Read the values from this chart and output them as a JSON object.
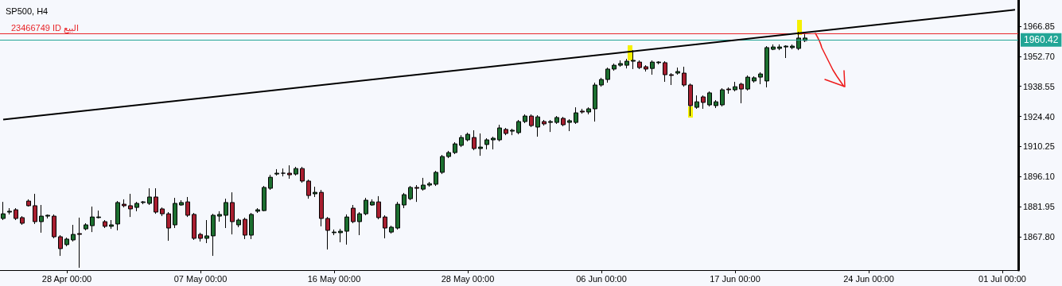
{
  "chart_data": {
    "type": "candlestick",
    "title": "SP500, H4",
    "categories": [
      null,
      null,
      null,
      null,
      null,
      null,
      null,
      null,
      null,
      null,
      "28 Apr 00:00",
      null,
      null,
      null,
      null,
      null,
      null,
      null,
      null,
      null,
      null,
      null,
      null,
      null,
      null,
      null,
      null,
      null,
      null,
      null,
      null,
      "07 May 00:00",
      null,
      null,
      null,
      null,
      null,
      null,
      null,
      null,
      null,
      null,
      null,
      null,
      null,
      null,
      null,
      null,
      null,
      null,
      null,
      null,
      "16 May 00:00",
      null,
      null,
      null,
      null,
      null,
      null,
      null,
      null,
      null,
      null,
      null,
      null,
      null,
      null,
      null,
      null,
      null,
      null,
      null,
      null,
      "28 May 00:00",
      null,
      null,
      null,
      null,
      null,
      null,
      null,
      null,
      null,
      null,
      null,
      null,
      null,
      null,
      null,
      null,
      null,
      null,
      null,
      null,
      "06 Jun 00:00",
      null,
      null,
      null,
      null,
      null,
      null,
      null,
      null,
      null,
      null,
      null,
      null,
      null,
      null,
      null,
      null,
      null,
      null,
      null,
      null,
      "17 Jun 00:00",
      null,
      null,
      null,
      null,
      null,
      null,
      null,
      null,
      null,
      null,
      null,
      null,
      null,
      null,
      null,
      null,
      null,
      null,
      null,
      null,
      "24 Jun 00:00",
      null,
      null,
      null,
      null,
      null,
      null,
      null,
      null,
      null,
      null,
      null,
      null,
      null,
      null,
      null,
      null,
      null,
      null,
      null,
      null,
      "01 Jul 00:00",
      null,
      null
    ],
    "ohlc": [
      [
        1876.4,
        1884.2,
        1875.65,
        1878.6
      ],
      [
        1879.4,
        1881.25,
        1878.3,
        1879.8
      ],
      [
        1880.5,
        1881.25,
        1875.65,
        1876.4
      ],
      [
        1876.8,
        1877.5,
        1873.4,
        1874.15
      ],
      [
        1884.6,
        1885.4,
        1882.0,
        1882.4
      ],
      [
        1882.4,
        1888.0,
        1873.8,
        1874.9
      ],
      [
        1874.9,
        1882.75,
        1869.7,
        1877.5
      ],
      [
        1877.5,
        1878.3,
        1876.4,
        1877.9
      ],
      [
        1877.5,
        1878.3,
        1867.05,
        1867.8
      ],
      [
        1867.8,
        1868.55,
        1858.8,
        1862.2
      ],
      [
        1864.1,
        1867.4,
        1863.3,
        1866.7
      ],
      [
        1866.3,
        1873.4,
        1865.55,
        1868.9
      ],
      [
        1869.3,
        1876.8,
        1853.2,
        1868.9
      ],
      [
        1871.5,
        1874.15,
        1870.8,
        1873.4
      ],
      [
        1873.0,
        1882.0,
        1870.0,
        1877.1
      ],
      [
        1876.8,
        1880.1,
        1876.4,
        1877.1
      ],
      [
        1874.9,
        1875.65,
        1871.9,
        1872.7
      ],
      [
        1872.7,
        1875.65,
        1871.5,
        1873.4
      ],
      [
        1873.8,
        1884.6,
        1870.8,
        1883.9
      ],
      [
        1883.1,
        1885.4,
        1881.6,
        1882.4
      ],
      [
        1882.4,
        1888.0,
        1877.1,
        1880.9
      ],
      [
        1881.6,
        1884.2,
        1879.8,
        1883.5
      ],
      [
        1883.9,
        1884.6,
        1883.1,
        1884.2
      ],
      [
        1883.5,
        1890.6,
        1882.75,
        1886.5
      ],
      [
        1886.5,
        1890.6,
        1878.6,
        1879.4
      ],
      [
        1880.9,
        1881.6,
        1877.5,
        1878.6
      ],
      [
        1878.6,
        1879.4,
        1865.9,
        1871.9
      ],
      [
        1873.4,
        1886.1,
        1871.9,
        1883.5
      ],
      [
        1882.75,
        1885.0,
        1882.4,
        1883.9
      ],
      [
        1884.2,
        1886.5,
        1877.1,
        1877.9
      ],
      [
        1878.3,
        1879.0,
        1866.3,
        1867.05
      ],
      [
        1868.9,
        1869.7,
        1865.55,
        1867.05
      ],
      [
        1867.05,
        1875.65,
        1864.8,
        1868.2
      ],
      [
        1868.2,
        1878.6,
        1858.8,
        1877.9
      ],
      [
        1877.5,
        1879.8,
        1874.9,
        1878.3
      ],
      [
        1877.9,
        1885.7,
        1871.9,
        1883.9
      ],
      [
        1883.9,
        1888.7,
        1868.9,
        1874.9
      ],
      [
        1873.4,
        1876.4,
        1872.3,
        1875.65
      ],
      [
        1876.0,
        1876.8,
        1866.7,
        1868.55
      ],
      [
        1868.55,
        1879.0,
        1866.7,
        1878.3
      ],
      [
        1879.8,
        1881.25,
        1879.0,
        1880.5
      ],
      [
        1880.1,
        1891.7,
        1879.8,
        1891.0
      ],
      [
        1890.6,
        1896.95,
        1889.85,
        1895.8
      ],
      [
        1897.3,
        1899.6,
        1896.6,
        1897.7
      ],
      [
        1897.7,
        1899.9,
        1896.2,
        1897.7
      ],
      [
        1897.7,
        1901.4,
        1895.1,
        1896.95
      ],
      [
        1897.3,
        1900.7,
        1896.6,
        1899.9
      ],
      [
        1899.9,
        1900.7,
        1893.2,
        1894.0
      ],
      [
        1894.0,
        1894.7,
        1885.7,
        1887.2
      ],
      [
        1888.0,
        1891.35,
        1886.5,
        1888.7
      ],
      [
        1888.7,
        1889.85,
        1872.7,
        1876.4
      ],
      [
        1876.4,
        1877.1,
        1861.8,
        1870.8
      ],
      [
        1869.7,
        1871.2,
        1868.55,
        1870.0
      ],
      [
        1869.7,
        1871.5,
        1865.2,
        1870.4
      ],
      [
        1870.4,
        1878.3,
        1864.1,
        1877.1
      ],
      [
        1881.25,
        1882.75,
        1874.15,
        1874.9
      ],
      [
        1874.9,
        1879.4,
        1868.55,
        1878.6
      ],
      [
        1878.6,
        1886.1,
        1877.9,
        1885.0
      ],
      [
        1882.75,
        1885.4,
        1882.4,
        1884.2
      ],
      [
        1884.2,
        1886.9,
        1876.0,
        1876.8
      ],
      [
        1877.1,
        1877.9,
        1867.05,
        1871.9
      ],
      [
        1870.0,
        1873.0,
        1869.3,
        1872.3
      ],
      [
        1871.9,
        1884.2,
        1871.2,
        1883.1
      ],
      [
        1882.75,
        1888.4,
        1881.25,
        1887.6
      ],
      [
        1885.7,
        1891.7,
        1885.0,
        1891.0
      ],
      [
        1891.0,
        1892.1,
        1884.2,
        1890.6
      ],
      [
        1890.2,
        1895.5,
        1889.5,
        1892.1
      ],
      [
        1892.1,
        1893.6,
        1891.35,
        1892.8
      ],
      [
        1892.5,
        1898.8,
        1891.7,
        1898.1
      ],
      [
        1898.1,
        1906.3,
        1897.3,
        1905.55
      ],
      [
        1905.55,
        1908.2,
        1904.8,
        1907.4
      ],
      [
        1907.4,
        1912.3,
        1906.7,
        1911.5
      ],
      [
        1910.8,
        1915.6,
        1910.0,
        1914.5
      ],
      [
        1913.4,
        1916.8,
        1912.65,
        1916.0
      ],
      [
        1914.5,
        1917.9,
        1908.5,
        1909.3
      ],
      [
        1909.3,
        1916.4,
        1905.9,
        1910.0
      ],
      [
        1911.2,
        1914.15,
        1908.9,
        1913.4
      ],
      [
        1913.4,
        1914.9,
        1908.9,
        1914.15
      ],
      [
        1913.4,
        1920.5,
        1912.65,
        1919.0
      ],
      [
        1918.3,
        1919.0,
        1915.6,
        1916.4
      ],
      [
        1917.5,
        1918.6,
        1915.6,
        1917.9
      ],
      [
        1916.8,
        1922.75,
        1916.0,
        1922.0
      ],
      [
        1922.0,
        1925.4,
        1921.25,
        1924.6
      ],
      [
        1924.6,
        1925.4,
        1919.4,
        1920.1
      ],
      [
        1919.4,
        1925.0,
        1914.9,
        1924.2
      ],
      [
        1922.0,
        1922.75,
        1920.1,
        1920.9
      ],
      [
        1921.6,
        1922.75,
        1917.1,
        1922.0
      ],
      [
        1921.6,
        1924.6,
        1920.9,
        1923.9
      ],
      [
        1923.5,
        1924.2,
        1919.8,
        1920.5
      ],
      [
        1921.6,
        1923.1,
        1917.5,
        1922.4
      ],
      [
        1921.6,
        1928.7,
        1920.9,
        1926.1
      ],
      [
        1926.9,
        1928.0,
        1925.7,
        1926.5
      ],
      [
        1926.5,
        1928.7,
        1925.4,
        1928.0
      ],
      [
        1928.0,
        1940.3,
        1922.0,
        1939.2
      ],
      [
        1939.2,
        1942.6,
        1938.4,
        1941.8
      ],
      [
        1941.8,
        1947.4,
        1940.3,
        1946.7
      ],
      [
        1946.7,
        1949.3,
        1945.9,
        1948.5
      ],
      [
        1948.5,
        1950.8,
        1947.8,
        1949.3
      ],
      [
        1948.5,
        1951.5,
        1947.0,
        1950.4
      ],
      [
        1950.4,
        1955.6,
        1946.7,
        1950.8
      ],
      [
        1950.0,
        1950.8,
        1946.7,
        1947.4
      ],
      [
        1947.8,
        1948.5,
        1945.55,
        1946.7
      ],
      [
        1947.0,
        1950.8,
        1944.05,
        1950.0
      ],
      [
        1949.7,
        1950.4,
        1948.9,
        1950.0
      ],
      [
        1949.7,
        1950.4,
        1940.7,
        1944.05
      ],
      [
        1944.05,
        1944.8,
        1939.2,
        1943.7
      ],
      [
        1944.8,
        1947.4,
        1944.05,
        1945.55
      ],
      [
        1944.8,
        1947.8,
        1938.4,
        1939.2
      ],
      [
        1939.2,
        1939.9,
        1924.6,
        1929.5
      ],
      [
        1928.7,
        1934.3,
        1928.0,
        1931.3
      ],
      [
        1933.6,
        1934.3,
        1928.0,
        1931.0
      ],
      [
        1929.85,
        1936.2,
        1929.1,
        1935.5
      ],
      [
        1929.5,
        1932.1,
        1928.35,
        1931.3
      ],
      [
        1929.85,
        1937.7,
        1929.1,
        1936.95
      ],
      [
        1937.3,
        1938.1,
        1935.1,
        1936.95
      ],
      [
        1936.95,
        1940.7,
        1936.2,
        1938.4
      ],
      [
        1939.6,
        1940.3,
        1930.6,
        1937.3
      ],
      [
        1937.3,
        1943.7,
        1936.6,
        1942.9
      ],
      [
        1941.1,
        1943.3,
        1940.3,
        1942.6
      ],
      [
        1942.9,
        1945.2,
        1939.6,
        1944.4
      ],
      [
        1941.1,
        1957.5,
        1938.1,
        1956.8
      ],
      [
        1956.0,
        1958.3,
        1955.6,
        1957.1
      ],
      [
        1956.4,
        1958.3,
        1955.6,
        1957.1
      ],
      [
        1957.1,
        1957.9,
        1951.9,
        1957.5
      ],
      [
        1956.8,
        1958.3,
        1956.0,
        1957.5
      ],
      [
        1956.4,
        1964.2,
        1955.6,
        1961.3
      ],
      [
        1960.1,
        1963.1,
        1959.4,
        1961.3
      ],
      null,
      null,
      null,
      null,
      null,
      null,
      null,
      null,
      null,
      null,
      null,
      null,
      null,
      null,
      null,
      null,
      null,
      null,
      null,
      null,
      null,
      null,
      null,
      null,
      null,
      null,
      null,
      null,
      null,
      null,
      null,
      null,
      null
    ],
    "series": [
      {
        "type": "line",
        "color": "#000000",
        "values": [
          1922.9,
          null,
          null,
          null,
          null,
          null,
          null,
          null,
          null,
          null,
          null,
          null,
          null,
          null,
          null,
          null,
          null,
          null,
          null,
          null,
          null,
          null,
          null,
          null,
          null,
          null,
          null,
          null,
          null,
          null,
          null,
          null,
          null,
          null,
          null,
          null,
          null,
          null,
          null,
          null,
          null,
          null,
          null,
          null,
          null,
          null,
          null,
          null,
          null,
          null,
          null,
          null,
          null,
          null,
          null,
          null,
          null,
          null,
          null,
          null,
          null,
          null,
          null,
          null,
          null,
          null,
          null,
          null,
          null,
          null,
          null,
          null,
          null,
          null,
          null,
          null,
          null,
          null,
          null,
          null,
          null,
          null,
          null,
          null,
          null,
          null,
          null,
          null,
          null,
          null,
          null,
          null,
          null,
          null,
          null,
          null,
          null,
          null,
          null,
          null,
          null,
          null,
          null,
          null,
          null,
          null,
          null,
          null,
          null,
          null,
          null,
          null,
          null,
          null,
          null,
          null,
          null,
          null,
          null,
          null,
          null,
          null,
          null,
          null,
          null,
          null,
          null,
          null,
          null,
          null,
          null,
          null,
          null,
          null,
          null,
          null,
          null,
          null,
          null,
          null,
          null,
          null,
          null,
          null,
          null,
          null,
          null,
          null,
          null,
          null,
          null,
          null,
          null,
          null,
          null,
          null,
          null,
          null,
          null,
          1974.6
        ]
      }
    ],
    "ylim": [
      1852.1,
      1979.2
    ],
    "yticks": [
      {
        "value": 1867.8,
        "label": "1867.80"
      },
      1881.95,
      {
        "value": 1896.1,
        "label": "1896.10"
      },
      1910.25,
      {
        "value": 1924.4,
        "label": "1924.40"
      },
      1938.55,
      {
        "value": 1952.7,
        "label": "1952.70"
      },
      1966.85
    ],
    "ref_lines": [
      {
        "axis": "y",
        "value": 1963.27,
        "label": "23466749 ID البيع",
        "color": "#e8262a"
      },
      {
        "axis": "y",
        "value": 1960.42,
        "label": "1960.42",
        "color": "#22a596"
      }
    ],
    "grid": false
  }
}
